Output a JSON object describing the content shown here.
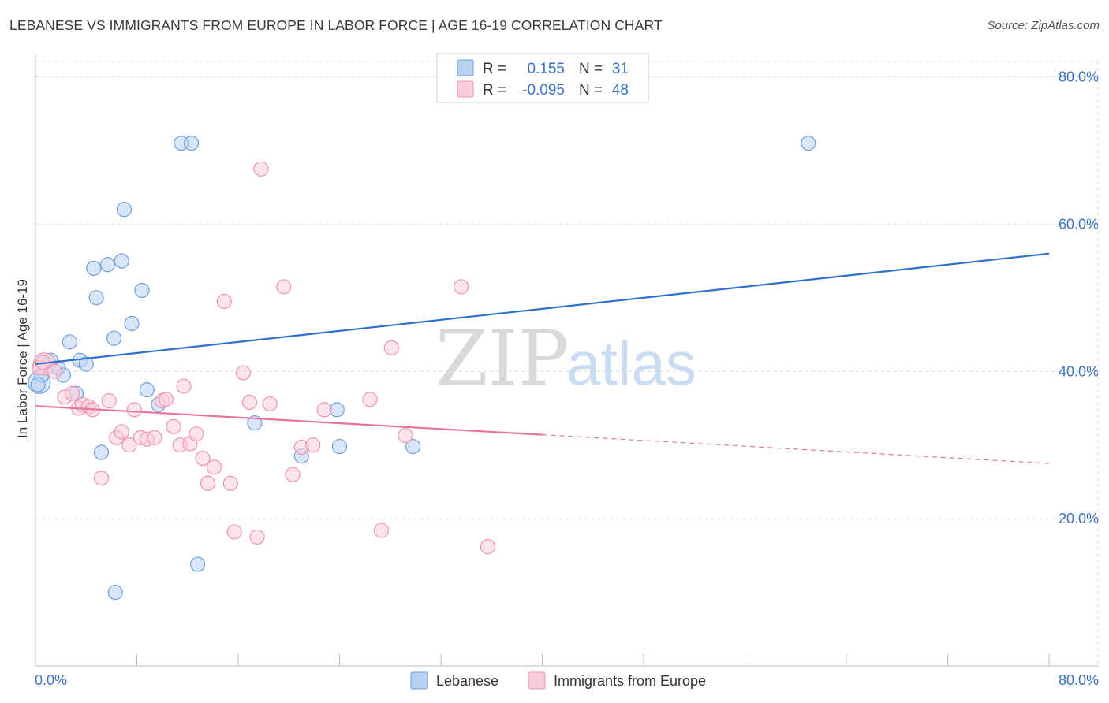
{
  "header": {
    "title": "LEBANESE VS IMMIGRANTS FROM EUROPE IN LABOR FORCE | AGE 16-19 CORRELATION CHART",
    "source": "Source: ZipAtlas.com"
  },
  "watermark": {
    "zip": "ZIP",
    "atlas": "atlas"
  },
  "chart_data": {
    "type": "scatter",
    "title": "LEBANESE VS IMMIGRANTS FROM EUROPE IN LABOR FORCE | AGE 16-19 CORRELATION CHART",
    "ylabel": "In Labor Force | Age 16-19",
    "xlabel": "",
    "xlim": [
      0,
      80
    ],
    "ylim": [
      0,
      80
    ],
    "x_tick_labels": [
      "0.0%",
      "80.0%"
    ],
    "y_tick_labels": [
      "20.0%",
      "40.0%",
      "60.0%",
      "80.0%"
    ],
    "y_ticks": [
      20,
      40,
      60,
      80
    ],
    "grid": true,
    "legend_position": "top-center",
    "stats": [
      {
        "r_label": "R =",
        "r": "0.155",
        "n_label": "N =",
        "n": "31"
      },
      {
        "r_label": "R =",
        "r": "-0.095",
        "n_label": "N =",
        "n": "48"
      }
    ],
    "series": [
      {
        "name": "Lebanese",
        "color": "#6f9fe0",
        "fill": "#b8d1f3",
        "trend": {
          "x": [
            0,
            80
          ],
          "y": [
            41.0,
            56.0
          ],
          "color": "#2e6fcd",
          "dashed_from": null
        },
        "points": [
          [
            0.3,
            38.5
          ],
          [
            0.5,
            39.5
          ],
          [
            1.2,
            41.5
          ],
          [
            1.8,
            40.5
          ],
          [
            2.2,
            39.5
          ],
          [
            2.7,
            44.0
          ],
          [
            3.2,
            37.0
          ],
          [
            3.5,
            41.5
          ],
          [
            4.0,
            41.0
          ],
          [
            4.6,
            54.0
          ],
          [
            4.8,
            50.0
          ],
          [
            5.2,
            29.0
          ],
          [
            5.7,
            54.5
          ],
          [
            6.2,
            44.5
          ],
          [
            6.3,
            10.0
          ],
          [
            6.8,
            55.0
          ],
          [
            7.0,
            62.0
          ],
          [
            7.6,
            46.5
          ],
          [
            8.4,
            51.0
          ],
          [
            8.8,
            37.5
          ],
          [
            9.7,
            35.5
          ],
          [
            11.5,
            71.0
          ],
          [
            12.3,
            71.0
          ],
          [
            12.8,
            13.8
          ],
          [
            17.3,
            33.0
          ],
          [
            21.0,
            28.5
          ],
          [
            23.8,
            34.8
          ],
          [
            24.0,
            29.8
          ],
          [
            29.8,
            29.8
          ],
          [
            61.0,
            71.0
          ],
          [
            0.2,
            38.2
          ]
        ],
        "sizes": [
          14,
          9,
          9,
          9,
          9,
          9,
          9,
          9,
          9,
          9,
          9,
          9,
          9,
          9,
          9,
          9,
          9,
          9,
          9,
          9,
          9,
          9,
          9,
          9,
          9,
          9,
          9,
          9,
          9,
          9,
          9
        ]
      },
      {
        "name": "Immigrants from Europe",
        "color": "#ef93b1",
        "fill": "#f9cddb",
        "trend": {
          "x": [
            0,
            80
          ],
          "y": [
            35.3,
            27.5
          ],
          "solid_until": 40,
          "color": "#e8739b"
        },
        "points": [
          [
            0.7,
            41.0
          ],
          [
            1.5,
            40.0
          ],
          [
            2.3,
            36.5
          ],
          [
            2.9,
            37.0
          ],
          [
            3.4,
            35.0
          ],
          [
            3.7,
            35.5
          ],
          [
            4.2,
            35.2
          ],
          [
            4.5,
            34.8
          ],
          [
            5.2,
            25.5
          ],
          [
            5.8,
            36.0
          ],
          [
            6.4,
            31.0
          ],
          [
            6.8,
            31.8
          ],
          [
            7.4,
            30.0
          ],
          [
            7.8,
            34.8
          ],
          [
            8.3,
            31.0
          ],
          [
            8.8,
            30.8
          ],
          [
            9.4,
            31.0
          ],
          [
            10.0,
            36.0
          ],
          [
            10.3,
            36.2
          ],
          [
            10.9,
            32.5
          ],
          [
            11.4,
            30.0
          ],
          [
            11.7,
            38.0
          ],
          [
            12.2,
            30.2
          ],
          [
            12.7,
            31.5
          ],
          [
            13.2,
            28.2
          ],
          [
            13.6,
            24.8
          ],
          [
            14.1,
            27.0
          ],
          [
            14.9,
            49.5
          ],
          [
            15.4,
            24.8
          ],
          [
            15.7,
            18.2
          ],
          [
            16.4,
            39.8
          ],
          [
            16.9,
            35.8
          ],
          [
            17.5,
            17.5
          ],
          [
            17.8,
            67.5
          ],
          [
            18.5,
            35.6
          ],
          [
            19.6,
            51.5
          ],
          [
            20.3,
            26.0
          ],
          [
            21.0,
            29.7
          ],
          [
            21.9,
            30.0
          ],
          [
            22.8,
            34.8
          ],
          [
            26.4,
            36.2
          ],
          [
            27.3,
            18.4
          ],
          [
            28.1,
            43.2
          ],
          [
            29.2,
            31.3
          ],
          [
            33.6,
            51.5
          ],
          [
            35.7,
            16.2
          ],
          [
            0.3,
            40.5
          ],
          [
            0.6,
            41.2
          ]
        ],
        "sizes": [
          14,
          9,
          9,
          9,
          9,
          9,
          9,
          9,
          9,
          9,
          9,
          9,
          9,
          9,
          9,
          9,
          9,
          9,
          9,
          9,
          9,
          9,
          9,
          9,
          9,
          9,
          9,
          9,
          9,
          9,
          9,
          9,
          9,
          9,
          9,
          9,
          9,
          9,
          9,
          9,
          9,
          9,
          9,
          9,
          9,
          9,
          9,
          9
        ]
      }
    ]
  }
}
